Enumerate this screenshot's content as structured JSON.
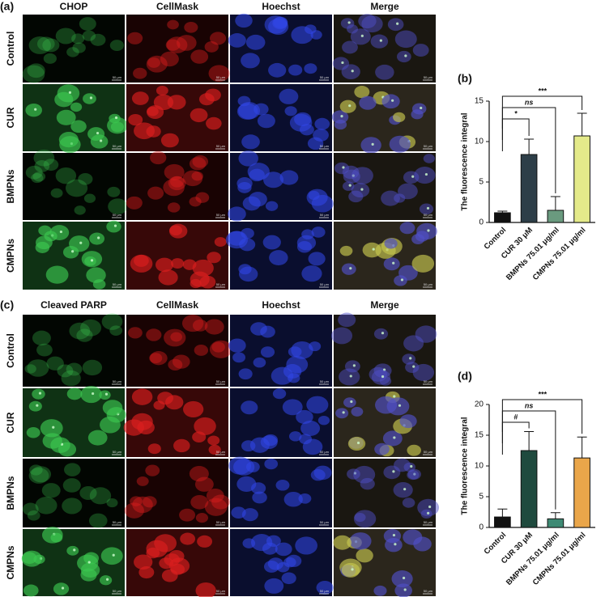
{
  "panels": [
    {
      "letter": "(a)",
      "columns": [
        "CHOP",
        "CellMask",
        "Hoechst",
        "Merge"
      ],
      "rows": [
        "Control",
        "CUR",
        "BMPNs",
        "CMPNs"
      ],
      "scale_bar": "50 μm"
    },
    {
      "letter": "(c)",
      "columns": [
        "Cleaved PARP",
        "CellMask",
        "Hoechst",
        "Merge"
      ],
      "rows": [
        "Control",
        "CUR",
        "BMPNs",
        "CMPNs"
      ],
      "scale_bar": "50 μm"
    }
  ],
  "chart_data": [
    {
      "type": "bar",
      "label": "(b)",
      "y_label": "The fluorescence integral",
      "categories": [
        "Control",
        "CUR 30 μM",
        "BMPNs 75.01 μg/ml",
        "CMPNs 75.01 μg/ml"
      ],
      "values": [
        1.2,
        8.4,
        1.5,
        10.7
      ],
      "errors": [
        0.2,
        1.9,
        1.7,
        2.8
      ],
      "colors": [
        "#111111",
        "#2d3e48",
        "#6a9a7f",
        "#e4ea8a"
      ],
      "ylim": [
        0,
        15
      ],
      "yticks": [
        0,
        5,
        10,
        15
      ],
      "annotations": [
        "*",
        "ns",
        "***"
      ]
    },
    {
      "type": "bar",
      "label": "(d)",
      "y_label": "The fluorescence integral",
      "categories": [
        "Control",
        "CUR 30 μM",
        "BMPNs 75.01 μg/ml",
        "CMPNs 75.01 μg/ml"
      ],
      "values": [
        1.7,
        12.5,
        1.4,
        11.3
      ],
      "errors": [
        1.3,
        3.1,
        1.0,
        3.4
      ],
      "colors": [
        "#111111",
        "#1f4a3e",
        "#3e8a74",
        "#eaa64a"
      ],
      "ylim": [
        0,
        20
      ],
      "yticks": [
        0,
        5,
        10,
        15,
        20
      ],
      "annotations": [
        "#",
        "ns",
        "***"
      ]
    }
  ]
}
